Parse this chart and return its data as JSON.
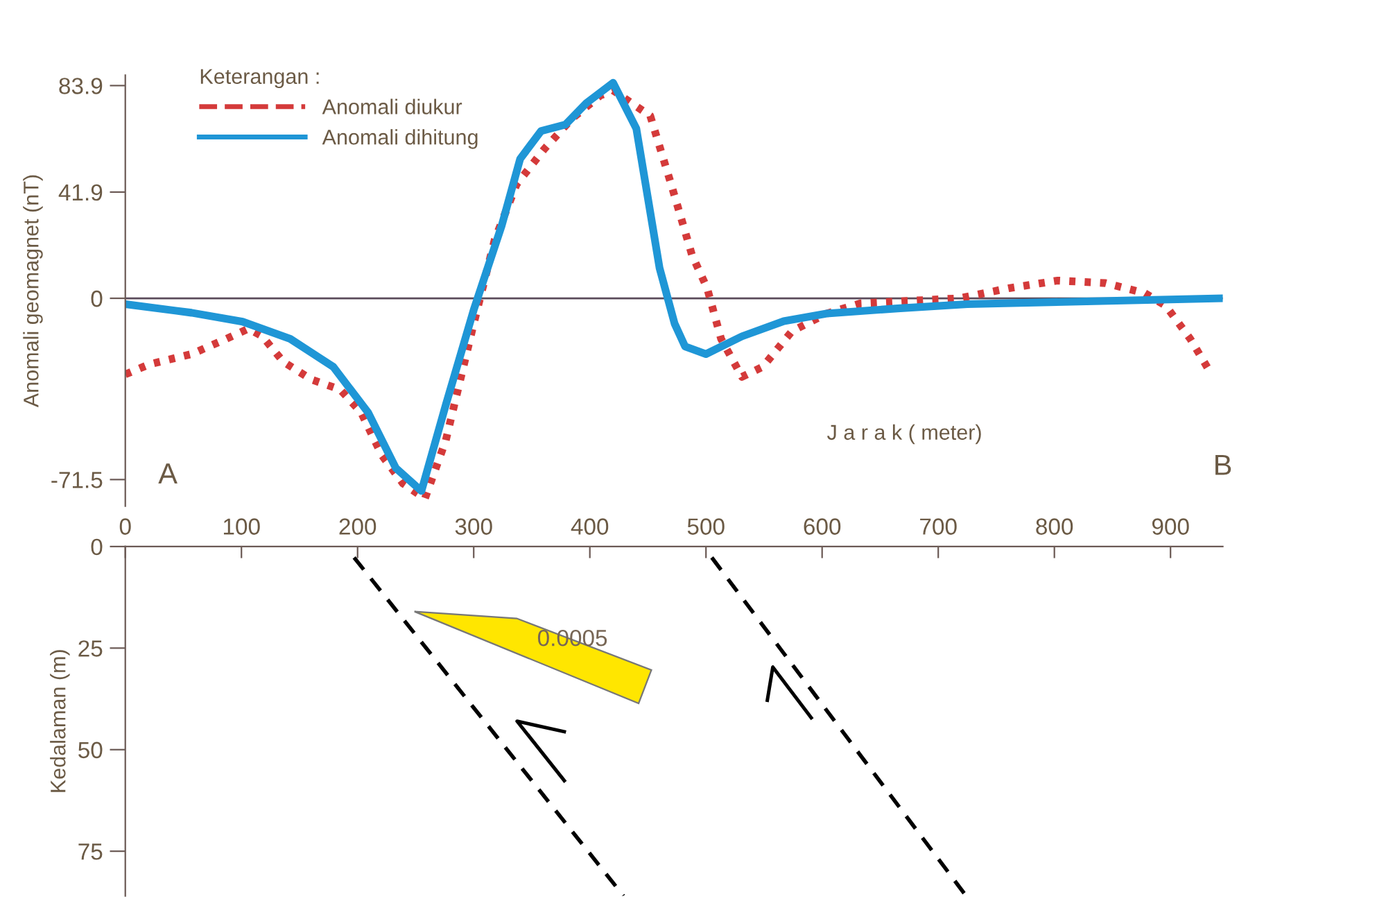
{
  "chart_data": [
    {
      "type": "line",
      "ylabel": "Anomali geomagnet (nT)",
      "xlabel": "J a r a k ( meter)",
      "legend_title": "Keterangan :",
      "legend": "top left",
      "grid": false,
      "xlim": [
        0,
        945
      ],
      "xticks": [
        0,
        100,
        200,
        300,
        400,
        500,
        600,
        700,
        800,
        900
      ],
      "ylim": [
        -82,
        88
      ],
      "yticks": [
        -71.5,
        0,
        41.9,
        83.9
      ],
      "ref_lines": [
        {
          "axis": "y",
          "value": 0,
          "color": "#5a4a5a"
        }
      ],
      "annotations": [
        "A",
        "B"
      ],
      "series": [
        {
          "name": "Anomali diukur",
          "color": "#d43a3a",
          "line_style": "dotted",
          "x": [
            0,
            21,
            57,
            87,
            106,
            118,
            136,
            160,
            185,
            203,
            221,
            239,
            258,
            276,
            300,
            318,
            337,
            361,
            385,
            409,
            420,
            452,
            470,
            488,
            501,
            513,
            531,
            549,
            574,
            604,
            633,
            718,
            761,
            803,
            844,
            878,
            896,
            917,
            934
          ],
          "values": [
            -30,
            -26,
            -22,
            -16,
            -12,
            -15,
            -25,
            -32,
            -36,
            -45,
            -62,
            -73,
            -79,
            -56,
            -10,
            23,
            45,
            59,
            71,
            80,
            82,
            72,
            45,
            17,
            4,
            -16,
            -31,
            -27,
            -13,
            -6,
            -2,
            0,
            4,
            7,
            6,
            2,
            -3,
            -16,
            -29
          ]
        },
        {
          "name": "Anomali dihitung",
          "color": "#1f96d6",
          "line_style": "solid",
          "x": [
            0,
            57,
            101,
            142,
            179,
            209,
            233,
            255,
            276,
            300,
            324,
            340,
            358,
            379,
            397,
            420,
            440,
            460,
            473,
            482,
            500,
            531,
            567,
            604,
            665,
            725,
            847,
            945
          ],
          "values": [
            -2.3,
            -5.7,
            -9.2,
            -16,
            -27,
            -45,
            -67,
            -76,
            -42,
            -4.6,
            28.5,
            55,
            66,
            68.5,
            77,
            85,
            67,
            12,
            -10,
            -19,
            -22,
            -15,
            -9,
            -6,
            -4,
            -2.3,
            -1,
            0
          ]
        }
      ]
    },
    {
      "type": "line",
      "ylabel": "Kedalaman (m)",
      "grid": false,
      "tick_labels": "y",
      "xlim": [
        0,
        945
      ],
      "xticks": [
        0,
        100,
        200,
        300,
        400,
        500,
        600,
        700,
        800,
        900
      ],
      "ylim": [
        86,
        0
      ],
      "yticks": [
        0,
        25,
        50,
        75
      ],
      "annotations": [
        {
          "text": "0.0005",
          "x": 385,
          "y": 23
        }
      ],
      "series": [
        {
          "color": "#000000",
          "line_style": "dashed",
          "x": [
            197,
            429
          ],
          "values": [
            2.7,
            86
          ]
        },
        {
          "color": "#000000",
          "line_style": "dashed",
          "x": [
            505,
            724
          ],
          "values": [
            2.7,
            86
          ]
        },
        {
          "type": "area",
          "color": "#ffe600",
          "x": [
            249,
            337,
            453,
            442
          ],
          "values": [
            16,
            17.7,
            30.4,
            38.6
          ]
        }
      ]
    }
  ]
}
